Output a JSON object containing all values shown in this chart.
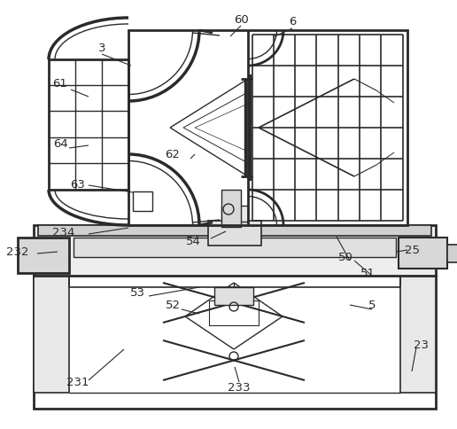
{
  "bg_color": "#ffffff",
  "lc": "#2a2a2a",
  "lw": 1.0,
  "fig_w": 5.16,
  "fig_h": 4.85,
  "dpi": 100
}
